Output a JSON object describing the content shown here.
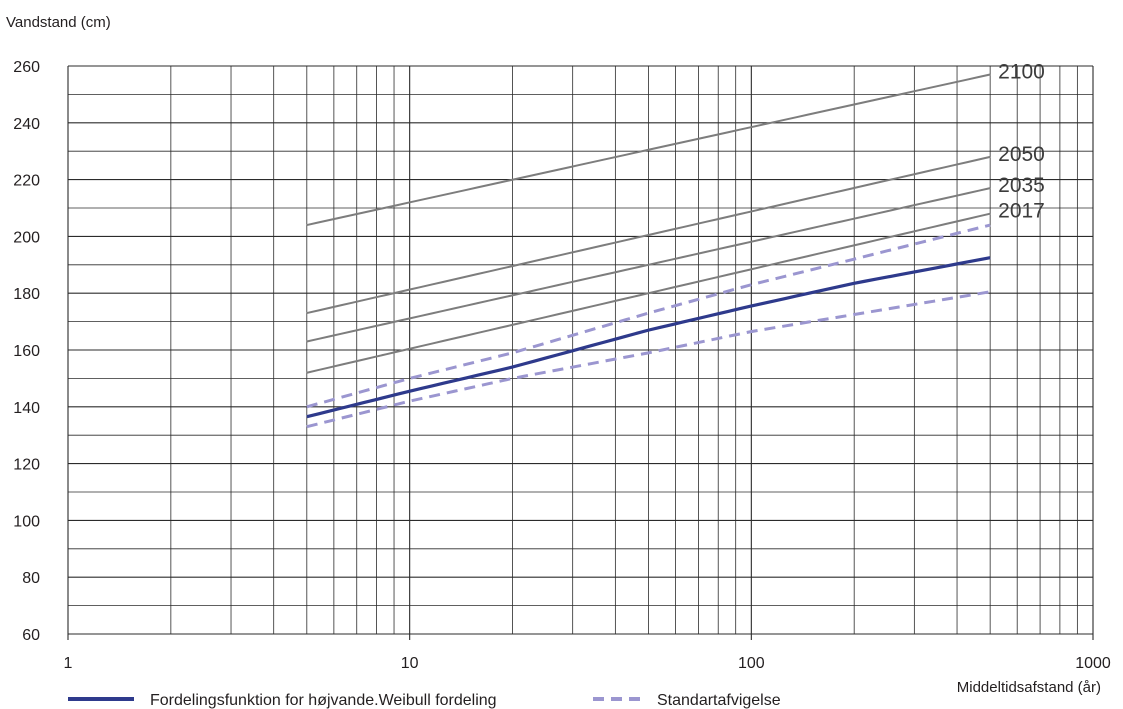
{
  "chart_data": {
    "type": "line",
    "ylabel": "Vandstand (cm)",
    "xlabel": "Middeltidsafstand (år)",
    "x_scale": "log",
    "xlim": [
      1,
      1000
    ],
    "ylim": [
      60,
      260
    ],
    "x_ticks": [
      "1",
      "10",
      "100",
      "1000"
    ],
    "y_ticks": [
      "60",
      "80",
      "100",
      "120",
      "140",
      "160",
      "180",
      "200",
      "220",
      "240",
      "260"
    ],
    "grid": true,
    "legend_position": "bottom-left",
    "series": [
      {
        "name": "Fordelingsfunktion for højvande.Weibull fordeling",
        "style": "solid",
        "color": "#2e3a8c",
        "x": [
          5,
          10,
          20,
          50,
          100,
          200,
          500
        ],
        "y": [
          136.5,
          145.5,
          154,
          167,
          175.5,
          183.5,
          192.5
        ]
      },
      {
        "name": "Standartafvigelse",
        "style": "dashed",
        "color": "#9b96d0",
        "x": [
          5,
          10,
          20,
          50,
          100,
          200,
          500
        ],
        "y": [
          140,
          150,
          159,
          173,
          183,
          192,
          204
        ]
      },
      {
        "style": "dashed",
        "color": "#9b96d0",
        "x": [
          5,
          10,
          20,
          50,
          100,
          200,
          500
        ],
        "y": [
          133,
          142,
          150,
          159,
          166.5,
          172.5,
          180.5
        ]
      },
      {
        "label": "2017",
        "style": "solid",
        "color": "#7d7d7d",
        "x": [
          5,
          500
        ],
        "y": [
          152,
          208
        ]
      },
      {
        "label": "2035",
        "style": "solid",
        "color": "#7d7d7d",
        "x": [
          5,
          500
        ],
        "y": [
          163,
          217
        ]
      },
      {
        "label": "2050",
        "style": "solid",
        "color": "#7d7d7d",
        "x": [
          5,
          500
        ],
        "y": [
          173,
          228
        ]
      },
      {
        "label": "2100",
        "style": "solid",
        "color": "#7d7d7d",
        "x": [
          5,
          500
        ],
        "y": [
          204,
          257
        ]
      }
    ]
  }
}
